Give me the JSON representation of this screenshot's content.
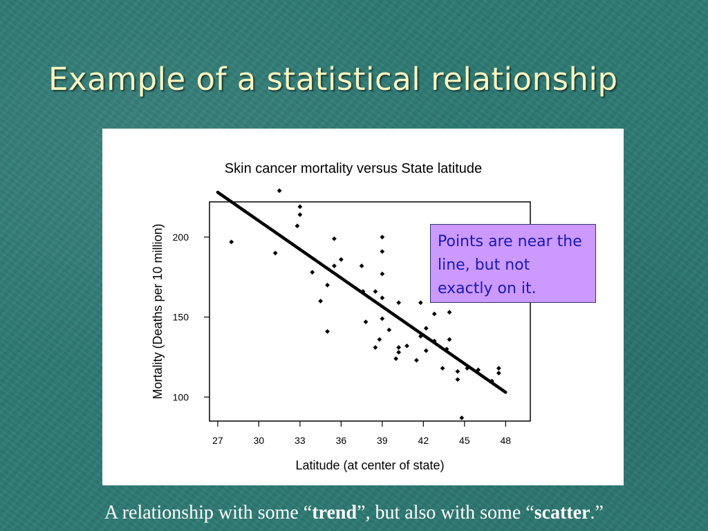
{
  "slide": {
    "title": "Example of a statistical relationship",
    "callout": "Points are near the line, but not exactly on it.",
    "caption": {
      "prefix": "A relationship with some “",
      "bold1": "trend",
      "middle": "”, but also with some “",
      "bold2": "scatter",
      "suffix": ".”"
    }
  },
  "chart_data": {
    "type": "scatter",
    "title": "Skin cancer mortality versus State latitude",
    "xlabel": "Latitude (at center of state)",
    "ylabel": "Mortality (Deaths per 10 million)",
    "xlim": [
      26.4,
      49.8
    ],
    "ylim": [
      85,
      222
    ],
    "xticks": [
      27,
      30,
      33,
      36,
      39,
      42,
      45,
      48
    ],
    "yticks": [
      100,
      150,
      200
    ],
    "grid": false,
    "points": [
      {
        "x": 28.0,
        "y": 197
      },
      {
        "x": 31.2,
        "y": 190
      },
      {
        "x": 31.5,
        "y": 229
      },
      {
        "x": 32.8,
        "y": 207
      },
      {
        "x": 33.0,
        "y": 219
      },
      {
        "x": 33.0,
        "y": 214
      },
      {
        "x": 33.9,
        "y": 178
      },
      {
        "x": 34.5,
        "y": 160
      },
      {
        "x": 35.0,
        "y": 141
      },
      {
        "x": 35.0,
        "y": 170
      },
      {
        "x": 35.5,
        "y": 199
      },
      {
        "x": 35.5,
        "y": 182
      },
      {
        "x": 36.0,
        "y": 186
      },
      {
        "x": 37.5,
        "y": 182
      },
      {
        "x": 37.6,
        "y": 166
      },
      {
        "x": 37.8,
        "y": 147
      },
      {
        "x": 38.5,
        "y": 166
      },
      {
        "x": 38.5,
        "y": 131
      },
      {
        "x": 38.8,
        "y": 136
      },
      {
        "x": 39.0,
        "y": 200
      },
      {
        "x": 39.0,
        "y": 191
      },
      {
        "x": 39.0,
        "y": 177
      },
      {
        "x": 39.0,
        "y": 162
      },
      {
        "x": 39.0,
        "y": 149
      },
      {
        "x": 39.5,
        "y": 142
      },
      {
        "x": 40.0,
        "y": 124
      },
      {
        "x": 40.2,
        "y": 159
      },
      {
        "x": 40.2,
        "y": 131
      },
      {
        "x": 40.2,
        "y": 128
      },
      {
        "x": 40.8,
        "y": 132
      },
      {
        "x": 41.5,
        "y": 123
      },
      {
        "x": 41.8,
        "y": 159
      },
      {
        "x": 41.8,
        "y": 138
      },
      {
        "x": 42.2,
        "y": 143
      },
      {
        "x": 42.2,
        "y": 129
      },
      {
        "x": 42.8,
        "y": 152
      },
      {
        "x": 42.8,
        "y": 135
      },
      {
        "x": 43.4,
        "y": 118
      },
      {
        "x": 43.7,
        "y": 130
      },
      {
        "x": 43.9,
        "y": 153
      },
      {
        "x": 43.9,
        "y": 136
      },
      {
        "x": 44.5,
        "y": 116
      },
      {
        "x": 44.5,
        "y": 111
      },
      {
        "x": 44.8,
        "y": 87
      },
      {
        "x": 45.2,
        "y": 118
      },
      {
        "x": 46.0,
        "y": 117
      },
      {
        "x": 47.0,
        "y": 110
      },
      {
        "x": 47.5,
        "y": 118
      },
      {
        "x": 47.5,
        "y": 115
      }
    ],
    "fit_line": {
      "x": [
        27.0,
        48.0
      ],
      "y": [
        228,
        103
      ]
    }
  }
}
